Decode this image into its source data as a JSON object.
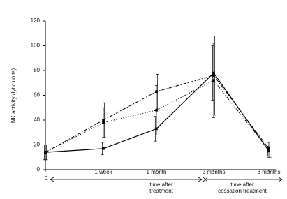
{
  "chart_data": {
    "type": "line",
    "y_label": "NK activity (lytic units)",
    "categories": [
      "0",
      "1 week",
      "1 month",
      "2 months",
      "3 months"
    ],
    "series": [
      {
        "color": "#000000",
        "dash": "solid",
        "values": [
          14,
          17,
          33,
          78,
          15
        ],
        "errors": [
          6,
          5,
          10,
          22,
          4
        ]
      },
      {
        "color": "#000000",
        "dash": "dotted",
        "values": [
          14,
          38,
          48,
          72,
          16
        ],
        "errors": [
          6,
          12,
          20,
          30,
          6
        ]
      },
      {
        "color": "#000000",
        "dash": "dashdot",
        "values": [
          14,
          40,
          63,
          76,
          17
        ],
        "errors": [
          6,
          14,
          14,
          32,
          7
        ]
      }
    ],
    "ylim": [
      0,
      120
    ],
    "yticks": [
      0,
      20,
      40,
      60,
      80,
      100,
      120
    ],
    "annotations": [
      [
        "time after",
        "treatment"
      ],
      [
        "time after",
        "cessation treatment"
      ]
    ]
  }
}
